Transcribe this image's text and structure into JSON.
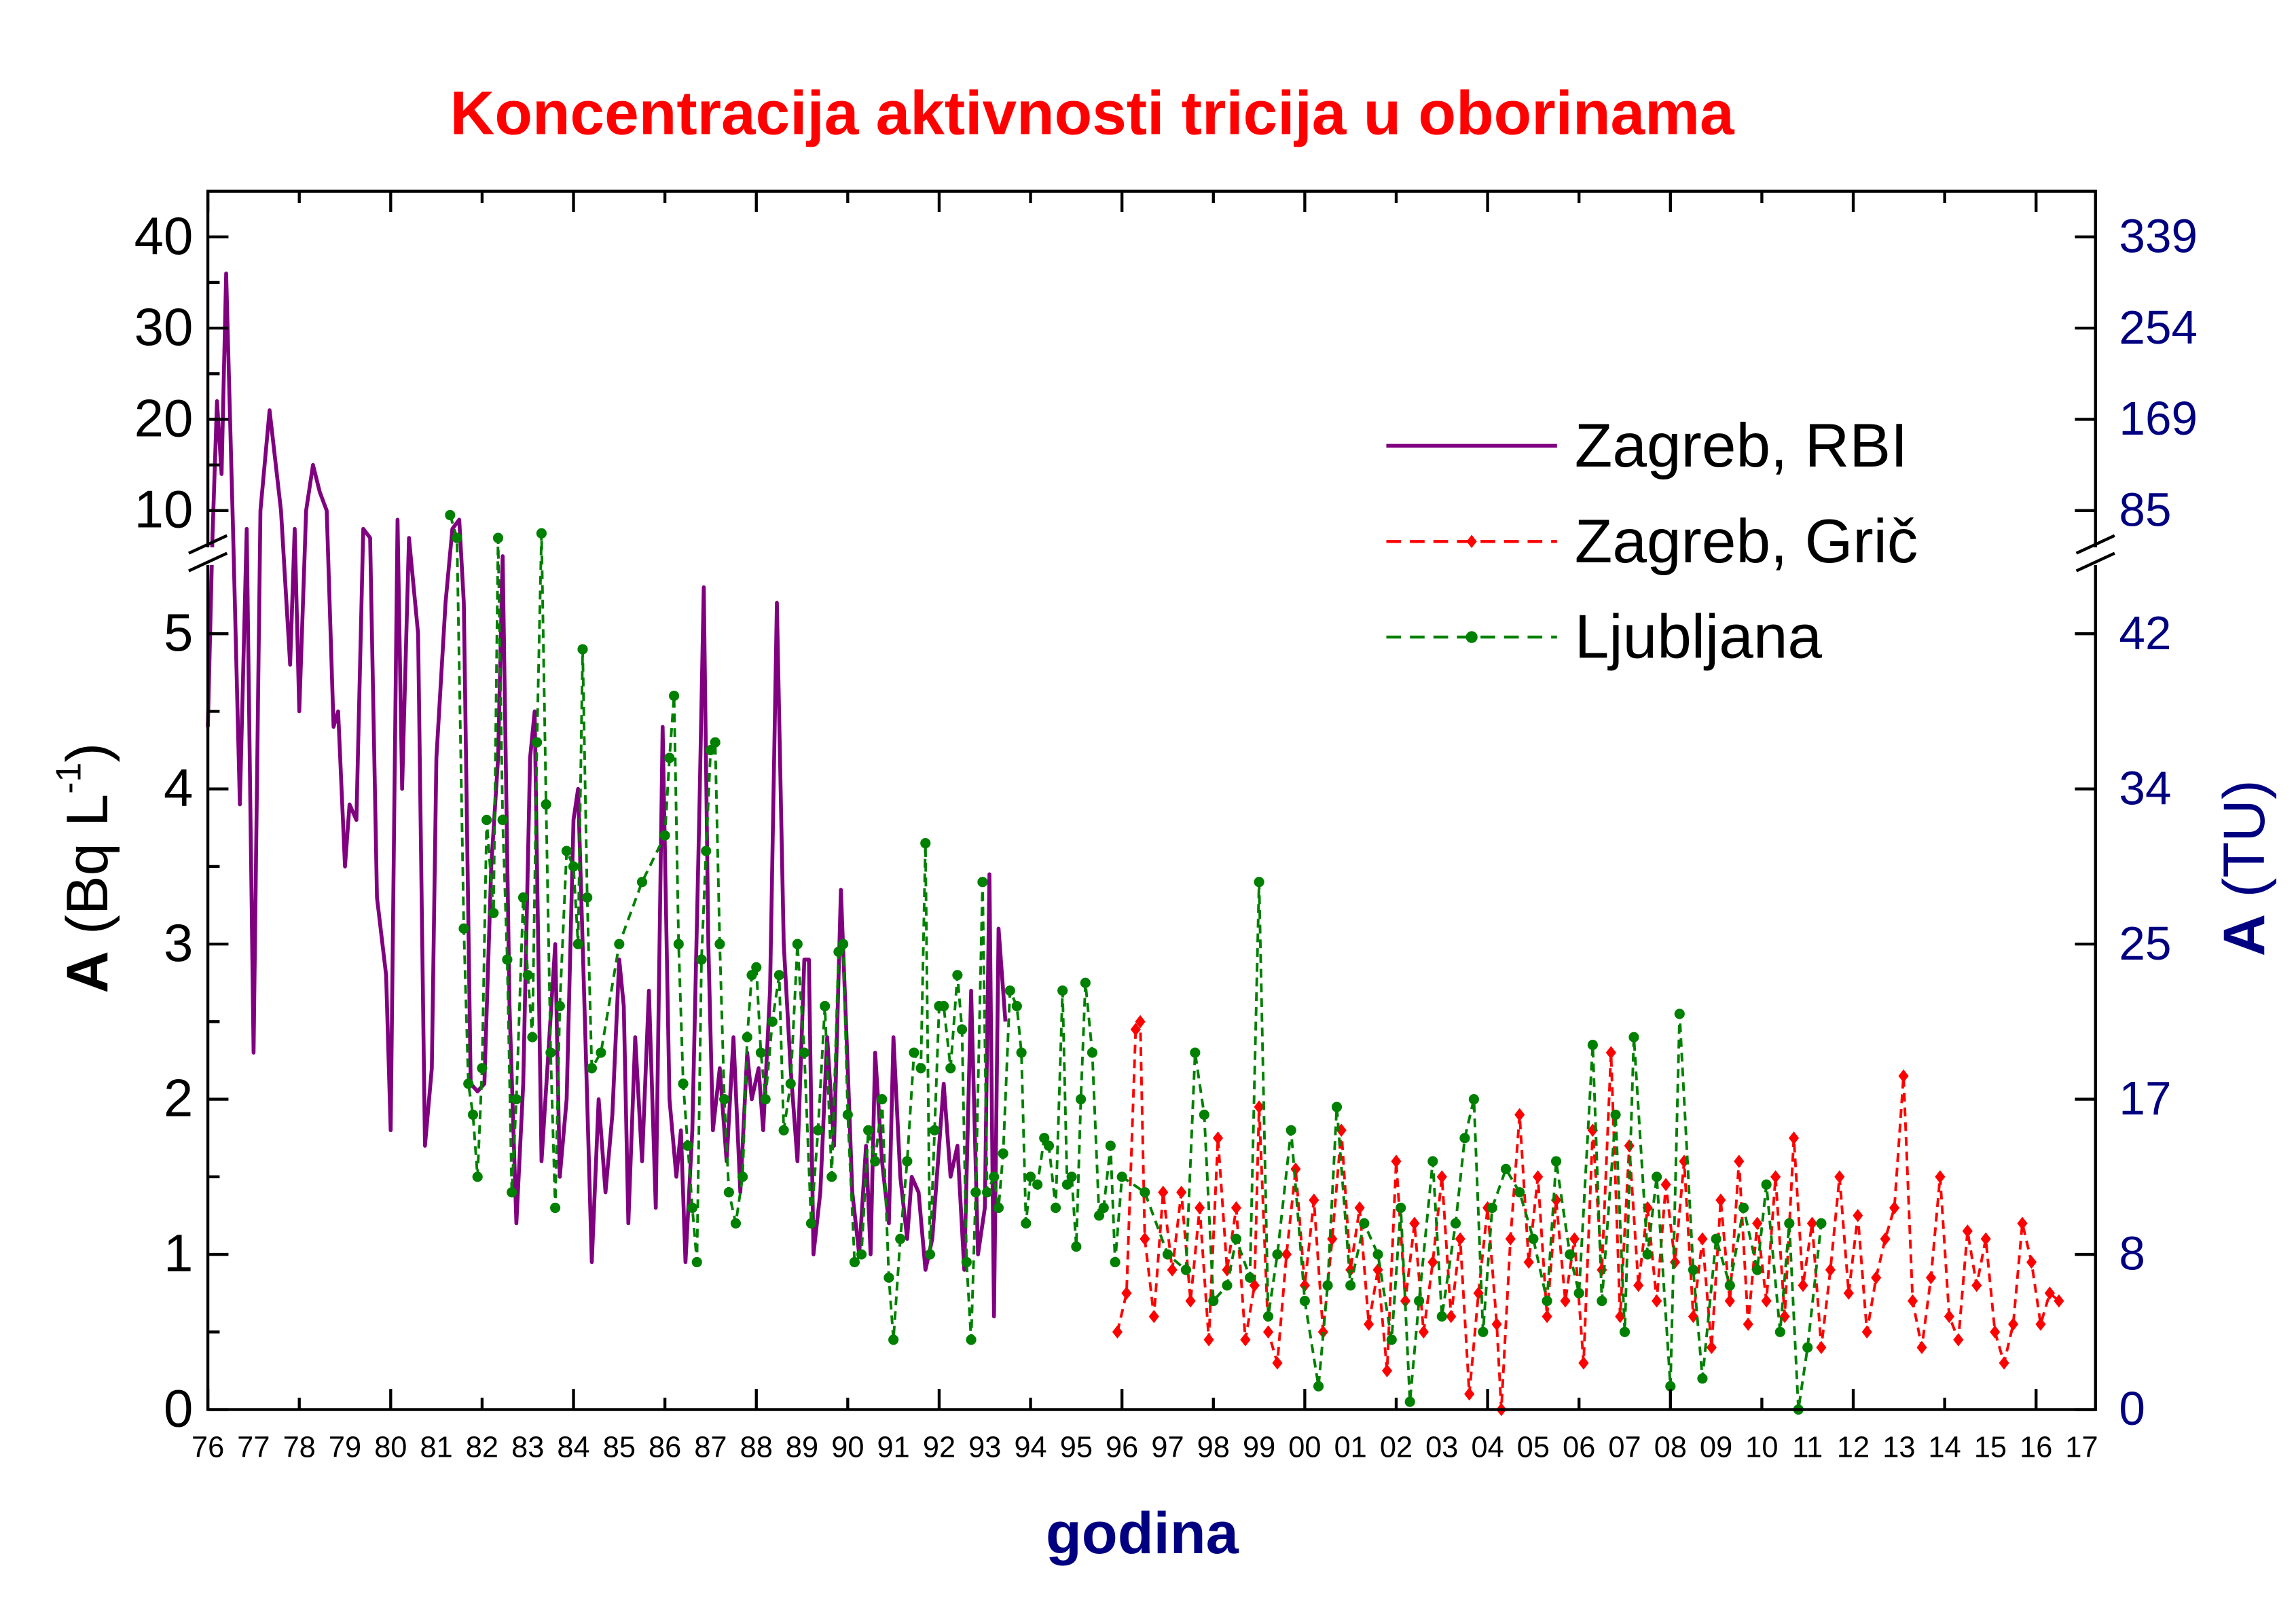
{
  "chart_data": {
    "type": "line",
    "title": "Koncentracija aktivnosti tricija u oborinama",
    "xlabel": "godina",
    "ylabel": [
      "A",
      "(Bq L",
      "-1",
      ")"
    ],
    "y2label": [
      "A",
      "(TU)"
    ],
    "xlim": [
      1976,
      2017.3
    ],
    "xticks": [
      {
        "value": 1976,
        "label": "76"
      },
      {
        "value": 1977,
        "label": "77"
      },
      {
        "value": 1978,
        "label": "78"
      },
      {
        "value": 1979,
        "label": "79"
      },
      {
        "value": 1980,
        "label": "80"
      },
      {
        "value": 1981,
        "label": "81"
      },
      {
        "value": 1982,
        "label": "82"
      },
      {
        "value": 1983,
        "label": "83"
      },
      {
        "value": 1984,
        "label": "84"
      },
      {
        "value": 1985,
        "label": "85"
      },
      {
        "value": 1986,
        "label": "86"
      },
      {
        "value": 1987,
        "label": "87"
      },
      {
        "value": 1988,
        "label": "88"
      },
      {
        "value": 1989,
        "label": "89"
      },
      {
        "value": 1990,
        "label": "90"
      },
      {
        "value": 1991,
        "label": "91"
      },
      {
        "value": 1992,
        "label": "92"
      },
      {
        "value": 1993,
        "label": "93"
      },
      {
        "value": 1994,
        "label": "94"
      },
      {
        "value": 1995,
        "label": "95"
      },
      {
        "value": 1996,
        "label": "96"
      },
      {
        "value": 1997,
        "label": "97"
      },
      {
        "value": 1998,
        "label": "98"
      },
      {
        "value": 1999,
        "label": "99"
      },
      {
        "value": 2000,
        "label": "00"
      },
      {
        "value": 2001,
        "label": "01"
      },
      {
        "value": 2002,
        "label": "02"
      },
      {
        "value": 2003,
        "label": "03"
      },
      {
        "value": 2004,
        "label": "04"
      },
      {
        "value": 2005,
        "label": "05"
      },
      {
        "value": 2006,
        "label": "06"
      },
      {
        "value": 2007,
        "label": "07"
      },
      {
        "value": 2008,
        "label": "08"
      },
      {
        "value": 2009,
        "label": "09"
      },
      {
        "value": 2010,
        "label": "10"
      },
      {
        "value": 2011,
        "label": "11"
      },
      {
        "value": 2012,
        "label": "12"
      },
      {
        "value": 2013,
        "label": "13"
      },
      {
        "value": 2014,
        "label": "14"
      },
      {
        "value": 2015,
        "label": "15"
      },
      {
        "value": 2016,
        "label": "16"
      },
      {
        "value": 2017,
        "label": "17"
      }
    ],
    "ylim": [
      0,
      5.5
    ],
    "yticks": [
      0,
      1,
      2,
      3,
      4,
      5
    ],
    "ylim_upper": [
      5,
      45
    ],
    "yticks_upper": [
      10,
      20,
      30,
      40
    ],
    "y2lim": [
      0,
      46.585
    ],
    "y2ticks": [
      0,
      {
        "value": 8.47,
        "label": "8"
      },
      {
        "value": 16.94,
        "label": "17"
      },
      {
        "value": 25.41,
        "label": "25"
      },
      {
        "value": 33.88,
        "label": "34"
      },
      {
        "value": 42.35,
        "label": "42"
      }
    ],
    "y2lim_upper": [
      42.35,
      381.15
    ],
    "y2ticks_upper": [
      {
        "value": 84.7,
        "label": "85"
      },
      {
        "value": 169.4,
        "label": "169"
      },
      {
        "value": 254.1,
        "label": "254"
      },
      {
        "value": 338.8,
        "label": "339"
      }
    ],
    "legend": "upper right",
    "series": [
      {
        "name": "Zagreb, RBI",
        "color": "#800080",
        "style": "solid",
        "marker": "none",
        "x": [
          1976.0,
          1976.1,
          1976.2,
          1976.3,
          1976.4,
          1976.55,
          1976.7,
          1976.85,
          1977.0,
          1977.15,
          1977.35,
          1977.6,
          1977.8,
          1977.9,
          1978.0,
          1978.15,
          1978.3,
          1978.45,
          1978.6,
          1978.75,
          1978.85,
          1979.0,
          1979.1,
          1979.25,
          1979.4,
          1979.55,
          1979.7,
          1979.9,
          1980.0,
          1980.15,
          1980.25,
          1980.4,
          1980.6,
          1980.75,
          1980.9,
          1981.0,
          1981.2,
          1981.35,
          1981.5,
          1981.6,
          1981.75,
          1981.9,
          1982.05,
          1982.2,
          1982.35,
          1982.45,
          1982.6,
          1982.75,
          1982.9,
          1983.05,
          1983.15,
          1983.3,
          1983.45,
          1983.6,
          1983.7,
          1983.85,
          1984.0,
          1984.1,
          1984.25,
          1984.4,
          1984.55,
          1984.7,
          1984.85,
          1985.0,
          1985.1,
          1985.2,
          1985.35,
          1985.5,
          1985.65,
          1985.8,
          1985.95,
          1986.1,
          1986.25,
          1986.35,
          1986.45,
          1986.6,
          1986.75,
          1986.85,
          1986.95,
          1987.05,
          1987.2,
          1987.35,
          1987.5,
          1987.65,
          1987.8,
          1987.9,
          1988.05,
          1988.15,
          1988.3,
          1988.45,
          1988.6,
          1988.75,
          1988.9,
          1989.05,
          1989.15,
          1989.25,
          1989.4,
          1989.55,
          1989.7,
          1989.85,
          1990.0,
          1990.1,
          1990.25,
          1990.4,
          1990.5,
          1990.6,
          1990.75,
          1990.9,
          1991.0,
          1991.15,
          1991.3,
          1991.4,
          1991.55,
          1991.7,
          1991.85,
          1992.0,
          1992.1,
          1992.25,
          1992.4,
          1992.55,
          1992.7,
          1992.85,
          1993.0,
          1993.1,
          1993.2,
          1993.3,
          1993.45
        ],
        "values": [
          4.4,
          7,
          22,
          14,
          36,
          8,
          3.9,
          8,
          2.3,
          10,
          21,
          10,
          4.8,
          8,
          4.5,
          10,
          15,
          12,
          10,
          4.4,
          4.5,
          3.5,
          3.9,
          3.8,
          8,
          7,
          3.3,
          2.8,
          1.8,
          9,
          4,
          7,
          5,
          1.7,
          2.2,
          4.2,
          5.2,
          8,
          9,
          5.2,
          2.1,
          2.05,
          2.1,
          3.5,
          4.2,
          5.5,
          2.6,
          1.2,
          2.1,
          4.2,
          4.5,
          1.6,
          2.3,
          3.0,
          1.5,
          2.0,
          3.8,
          4.0,
          2.5,
          0.95,
          2.0,
          1.4,
          1.9,
          2.9,
          2.6,
          1.2,
          2.4,
          1.6,
          2.7,
          1.3,
          4.4,
          2.0,
          1.5,
          1.8,
          0.95,
          1.8,
          3.8,
          5.3,
          3.0,
          1.8,
          2.2,
          1.6,
          2.4,
          1.4,
          2.3,
          2.0,
          2.2,
          1.8,
          2.7,
          5.2,
          3.0,
          2.2,
          1.6,
          2.9,
          2.9,
          1.0,
          1.4,
          2.4,
          1.7,
          3.35,
          2.2,
          1.4,
          1.0,
          1.7,
          1.0,
          2.3,
          1.6,
          1.2,
          2.4,
          1.5,
          1.1,
          1.5,
          1.4,
          0.9,
          1.1,
          1.7,
          2.1,
          1.5,
          1.7,
          0.9,
          2.7,
          1.0,
          1.3,
          3.45,
          0.6,
          3.1,
          2.5
        ]
      },
      {
        "name": "Zagreb, Grič",
        "color": "#ff0000",
        "style": "dashed",
        "marker": "diamond",
        "x": [
          1995.9,
          1996.1,
          1996.3,
          1996.4,
          1996.5,
          1996.7,
          1996.9,
          1997.1,
          1997.3,
          1997.5,
          1997.7,
          1997.9,
          1998.1,
          1998.3,
          1998.5,
          1998.7,
          1998.9,
          1999.0,
          1999.2,
          1999.4,
          1999.6,
          1999.8,
          2000.0,
          2000.2,
          2000.4,
          2000.6,
          2000.8,
          2001.0,
          2001.2,
          2001.4,
          2001.6,
          2001.8,
          2002.0,
          2002.2,
          2002.4,
          2002.6,
          2002.8,
          2003.0,
          2003.2,
          2003.4,
          2003.6,
          2003.8,
          2004.0,
          2004.2,
          2004.3,
          2004.5,
          2004.7,
          2004.9,
          2005.1,
          2005.3,
          2005.5,
          2005.7,
          2005.9,
          2006.1,
          2006.3,
          2006.5,
          2006.7,
          2006.9,
          2007.1,
          2007.3,
          2007.5,
          2007.7,
          2007.9,
          2008.1,
          2008.3,
          2008.5,
          2008.7,
          2008.9,
          2009.1,
          2009.3,
          2009.5,
          2009.7,
          2009.9,
          2010.1,
          2010.3,
          2010.5,
          2010.7,
          2010.9,
          2011.1,
          2011.3,
          2011.5,
          2011.7,
          2011.9,
          2012.1,
          2012.3,
          2012.5,
          2012.7,
          2012.9,
          2013.1,
          2013.3,
          2013.5,
          2013.7,
          2013.9,
          2014.1,
          2014.3,
          2014.5,
          2014.7,
          2014.9,
          2015.1,
          2015.3,
          2015.5,
          2015.7,
          2015.9,
          2016.1,
          2016.3,
          2016.5
        ],
        "values": [
          0.5,
          0.75,
          2.45,
          2.5,
          1.1,
          0.6,
          1.4,
          0.9,
          1.4,
          0.7,
          1.3,
          0.45,
          1.75,
          0.9,
          1.3,
          0.45,
          0.8,
          1.95,
          0.5,
          0.3,
          1.0,
          1.55,
          0.8,
          1.35,
          0.5,
          1.1,
          1.8,
          0.9,
          1.3,
          0.55,
          0.9,
          0.25,
          1.6,
          0.7,
          1.2,
          0.5,
          0.95,
          1.5,
          0.6,
          1.1,
          0.1,
          0.75,
          1.3,
          0.55,
          0.0,
          1.1,
          1.9,
          0.95,
          1.5,
          0.6,
          1.35,
          0.7,
          1.1,
          0.3,
          1.8,
          0.9,
          2.3,
          0.6,
          1.7,
          0.8,
          1.3,
          0.7,
          1.45,
          0.95,
          1.6,
          0.6,
          1.1,
          0.4,
          1.35,
          0.7,
          1.6,
          0.55,
          1.2,
          0.7,
          1.5,
          0.6,
          1.75,
          0.8,
          1.2,
          0.4,
          0.9,
          1.5,
          0.75,
          1.25,
          0.5,
          0.85,
          1.1,
          1.3,
          2.15,
          0.7,
          0.4,
          0.85,
          1.5,
          0.6,
          0.45,
          1.15,
          0.8,
          1.1,
          0.5,
          0.3,
          0.55,
          1.2,
          0.95,
          0.55,
          0.75,
          0.7
        ]
      },
      {
        "name": "Ljubljana",
        "color": "#008000",
        "style": "dashed",
        "marker": "circle",
        "x": [
          1981.3,
          1981.45,
          1981.6,
          1981.7,
          1981.8,
          1981.9,
          1982.0,
          1982.1,
          1982.25,
          1982.35,
          1982.45,
          1982.55,
          1982.65,
          1982.75,
          1982.9,
          1983.0,
          1983.1,
          1983.2,
          1983.3,
          1983.4,
          1983.5,
          1983.6,
          1983.7,
          1983.85,
          1984.0,
          1984.1,
          1984.2,
          1984.3,
          1984.4,
          1984.6,
          1985.0,
          1985.5,
          1986.0,
          1986.1,
          1986.2,
          1986.3,
          1986.4,
          1986.5,
          1986.6,
          1986.7,
          1986.8,
          1986.9,
          1987.0,
          1987.1,
          1987.2,
          1987.3,
          1987.4,
          1987.55,
          1987.7,
          1987.8,
          1987.9,
          1988.0,
          1988.1,
          1988.2,
          1988.35,
          1988.5,
          1988.6,
          1988.75,
          1988.9,
          1989.05,
          1989.2,
          1989.35,
          1989.5,
          1989.65,
          1989.8,
          1989.9,
          1990.0,
          1990.15,
          1990.3,
          1990.45,
          1990.6,
          1990.75,
          1990.9,
          1991.0,
          1991.15,
          1991.3,
          1991.45,
          1991.6,
          1991.7,
          1991.8,
          1991.9,
          1992.0,
          1992.1,
          1992.25,
          1992.4,
          1992.5,
          1992.6,
          1992.7,
          1992.8,
          1992.95,
          1993.05,
          1993.2,
          1993.3,
          1993.4,
          1993.55,
          1993.7,
          1993.8,
          1993.9,
          1994.0,
          1994.15,
          1994.3,
          1994.4,
          1994.55,
          1994.7,
          1994.8,
          1994.9,
          1995.0,
          1995.1,
          1995.2,
          1995.35,
          1995.5,
          1995.6,
          1995.75,
          1995.85,
          1996.0,
          1996.5,
          1997.0,
          1997.4,
          1997.6,
          1997.8,
          1998.0,
          1998.3,
          1998.5,
          1998.8,
          1999.0,
          1999.2,
          1999.4,
          1999.7,
          2000.0,
          2000.3,
          2000.5,
          2000.7,
          2001.0,
          2001.3,
          2001.6,
          2001.9,
          2002.1,
          2002.3,
          2002.5,
          2002.8,
          2003.0,
          2003.3,
          2003.5,
          2003.7,
          2003.9,
          2004.1,
          2004.4,
          2004.7,
          2005.0,
          2005.3,
          2005.5,
          2005.8,
          2006.0,
          2006.3,
          2006.5,
          2006.8,
          2007.0,
          2007.2,
          2007.5,
          2007.7,
          2008.0,
          2008.2,
          2008.5,
          2008.7,
          2009.0,
          2009.3,
          2009.6,
          2009.9,
          2010.1,
          2010.4,
          2010.6,
          2010.8,
          2011.0,
          2011.3
        ],
        "values": [
          9.5,
          7,
          3.1,
          2.1,
          1.9,
          1.5,
          2.2,
          3.8,
          3.2,
          7,
          3.8,
          2.9,
          1.4,
          2.0,
          3.3,
          2.8,
          2.4,
          4.3,
          7.5,
          3.9,
          2.3,
          1.3,
          2.6,
          3.6,
          3.5,
          3.0,
          4.9,
          3.3,
          2.2,
          2.3,
          3.0,
          3.4,
          3.7,
          4.2,
          4.6,
          3.0,
          2.1,
          1.7,
          1.3,
          0.95,
          2.9,
          3.6,
          4.25,
          4.3,
          3.0,
          2.0,
          1.4,
          1.2,
          1.5,
          2.4,
          2.8,
          2.85,
          2.3,
          2.0,
          2.5,
          2.8,
          1.8,
          2.1,
          3.0,
          2.3,
          1.2,
          1.8,
          2.6,
          1.5,
          2.95,
          3.0,
          1.9,
          0.95,
          1.0,
          1.8,
          1.6,
          2.0,
          0.85,
          0.45,
          1.1,
          1.6,
          2.3,
          2.2,
          3.65,
          1.0,
          1.8,
          2.6,
          2.6,
          2.2,
          2.8,
          2.45,
          0.95,
          0.45,
          1.4,
          3.4,
          1.4,
          1.5,
          1.3,
          1.65,
          2.7,
          2.6,
          2.3,
          1.2,
          1.5,
          1.45,
          1.75,
          1.7,
          1.3,
          2.7,
          1.45,
          1.5,
          1.05,
          2.0,
          2.75,
          2.3,
          1.25,
          1.3,
          1.7,
          0.95,
          1.5,
          1.4,
          1.0,
          0.9,
          2.3,
          1.9,
          0.7,
          0.8,
          1.1,
          0.85,
          3.4,
          0.6,
          1.0,
          1.8,
          0.7,
          0.15,
          0.8,
          1.95,
          0.8,
          1.2,
          1.0,
          0.45,
          1.3,
          0.05,
          0.7,
          1.6,
          0.6,
          1.2,
          1.75,
          2.0,
          0.5,
          1.3,
          1.55,
          1.4,
          1.1,
          0.7,
          1.6,
          1.0,
          0.75,
          2.35,
          0.7,
          1.9,
          0.5,
          2.4,
          1.0,
          1.5,
          0.15,
          2.55,
          0.9,
          0.2,
          1.1,
          0.8,
          1.3,
          0.9,
          1.45,
          0.5,
          1.2,
          0.0,
          0.4,
          1.2
        ]
      }
    ]
  }
}
